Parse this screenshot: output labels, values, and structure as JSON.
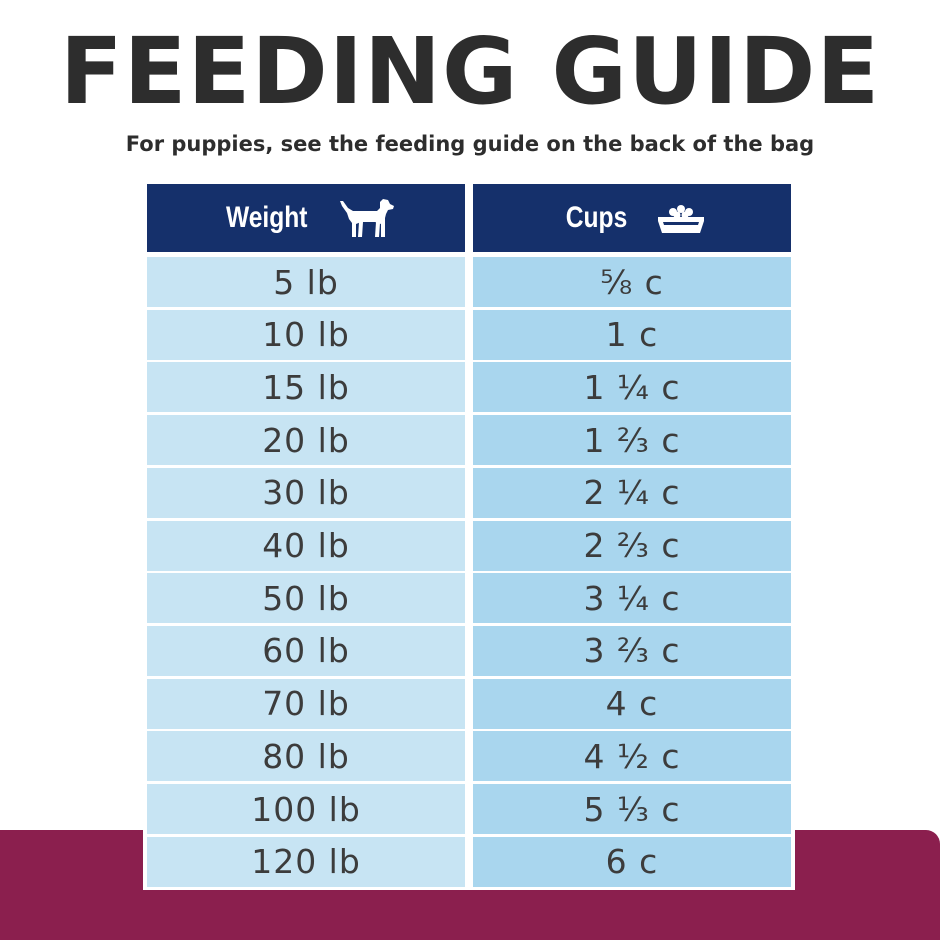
{
  "title": "FEEDING GUIDE",
  "subtitle": "For puppies, see the feeding guide on the back of the bag",
  "table": {
    "headers": {
      "weight": "Weight",
      "cups": "Cups"
    },
    "header_icons": {
      "weight": "dog-icon",
      "cups": "food-bowl-icon"
    },
    "rows": [
      {
        "weight": "5 lb",
        "cups": "⅝ c"
      },
      {
        "weight": "10 lb",
        "cups": "1 c"
      },
      {
        "weight": "15 lb",
        "cups": "1 ¼ c"
      },
      {
        "weight": "20 lb",
        "cups": "1 ⅔ c"
      },
      {
        "weight": "30 lb",
        "cups": "2 ¼ c"
      },
      {
        "weight": "40 lb",
        "cups": "2 ⅔ c"
      },
      {
        "weight": "50 lb",
        "cups": "3 ¼ c"
      },
      {
        "weight": "60 lb",
        "cups": "3 ⅔ c"
      },
      {
        "weight": "70 lb",
        "cups": "4 c"
      },
      {
        "weight": "80 lb",
        "cups": "4 ½ c"
      },
      {
        "weight": "100 lb",
        "cups": "5 ⅓ c"
      },
      {
        "weight": "120 lb",
        "cups": "6 c"
      }
    ]
  },
  "colors": {
    "header_bg": "#15306b",
    "weight_cell_bg": "#c7e4f3",
    "cups_cell_bg": "#a9d6ee",
    "bottom_band": "#8b1f4e",
    "title_text": "#2d2d2d"
  }
}
